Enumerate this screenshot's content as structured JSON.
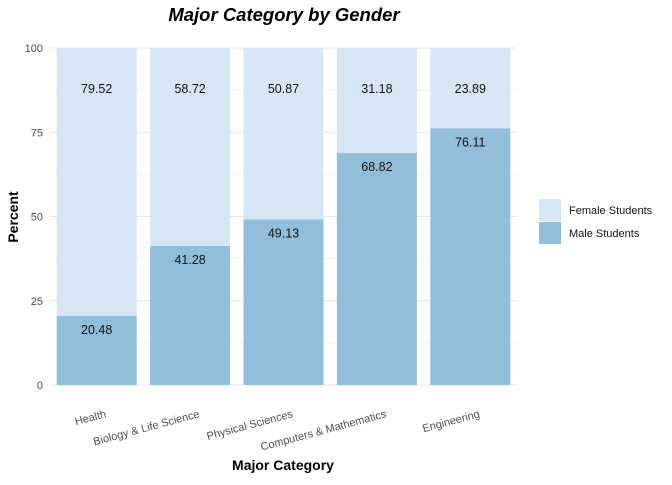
{
  "chart_data": {
    "type": "bar",
    "stacked": true,
    "title": "Major Category by Gender",
    "xlabel": "Major Category",
    "ylabel": "Percent",
    "ylim": [
      0,
      100
    ],
    "yticks": [
      0,
      25,
      50,
      75,
      100
    ],
    "grid": true,
    "legend_position": "right",
    "categories": [
      "Health",
      "Biology & Life Science",
      "Physical Sciences",
      "Computers & Mathematics",
      "Engineering"
    ],
    "series": [
      {
        "name": "Male Students",
        "color": "#91bfdb",
        "values": [
          20.48,
          41.28,
          49.13,
          68.82,
          76.11
        ],
        "labels": [
          "20.48",
          "41.28",
          "49.13",
          "68.82",
          "76.11"
        ]
      },
      {
        "name": "Female Students",
        "color": "#d7e6f4",
        "values": [
          79.52,
          58.72,
          50.87,
          31.18,
          23.89
        ],
        "labels": [
          "79.52",
          "58.72",
          "50.87",
          "31.18",
          "23.89"
        ]
      }
    ],
    "legend_order": [
      "Female Students",
      "Male Students"
    ]
  }
}
